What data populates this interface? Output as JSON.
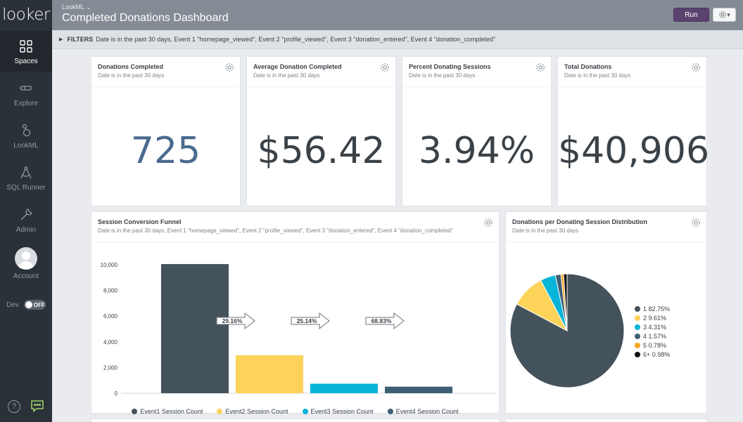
{
  "app": {
    "logo": "looker"
  },
  "sidebar": {
    "spaces": "Spaces",
    "explore": "Explore",
    "lookml": "LookML",
    "sql_runner": "SQL Runner",
    "admin": "Admin",
    "account": "Account",
    "dev_label": "Dev",
    "dev_toggle": "OFF",
    "help": "?"
  },
  "header": {
    "breadcrumb": "LookML",
    "title": "Completed Donations Dashboard",
    "run_label": "Run"
  },
  "filters": {
    "label": "FILTERS",
    "text": "Date is in the past 30 days, Event 1 \"homepage_viewed\", Event 2 \"profile_viewed\", Event 3 \"donation_entered\", Event 4 \"donation_completed\""
  },
  "tiles": {
    "donations_completed": {
      "title": "Donations Completed",
      "subtitle": "Date is in the past 30 days",
      "value": "725"
    },
    "avg_donation": {
      "title": "Average Donation Completed",
      "subtitle": "Date is in the past 30 days",
      "value": "$56.42"
    },
    "pct_donating": {
      "title": "Percent Donating Sessions",
      "subtitle": "Date is in the past 30 days",
      "value": "3.94%"
    },
    "total_donations": {
      "title": "Total Donations",
      "subtitle": "Date is in the past 30 days",
      "value": "$40,906"
    },
    "funnel": {
      "title": "Session Conversion Funnel",
      "subtitle": "Date is in the past 30 days, Event 1 \"homepage_viewed\", Event 2 \"profile_viewed\", Event 3 \"donation_entered\", Event 4 \"donation_completed\""
    },
    "distribution": {
      "title": "Donations per Donating Session Distribution",
      "subtitle": "Date is in the past 30 days"
    }
  },
  "colors": {
    "event1": "#44525c",
    "event2": "#fdd35a",
    "event3": "#09b4d9",
    "event4": "#3e5f73",
    "slice5": "#f5a623",
    "slice6": "#111111",
    "purple": "#5b4370"
  },
  "chart_data": [
    {
      "type": "bar",
      "title": "Session Conversion Funnel",
      "categories": [
        "Event1 Session Count",
        "Event2 Session Count",
        "Event3 Session Count",
        "Event4 Session Count"
      ],
      "values": [
        10050,
        2950,
        740,
        510
      ],
      "conversion_labels": [
        "29.16%",
        "25.14%",
        "68.83%"
      ],
      "yticks": [
        "10,000",
        "8,000",
        "6,000",
        "4,000",
        "2,000",
        "0"
      ],
      "ylim": [
        0,
        10500
      ],
      "legend": [
        "Event1 Session Count",
        "Event2 Session Count",
        "Event3 Session Count",
        "Event4 Session Count"
      ]
    },
    {
      "type": "pie",
      "title": "Donations per Donating Session Distribution",
      "labels": [
        "1",
        "2",
        "3",
        "4",
        "5",
        "6+"
      ],
      "values": [
        82.75,
        9.61,
        4.31,
        1.57,
        0.78,
        0.98
      ],
      "legend": [
        "1 82.75%",
        "2 9.61%",
        "3 4.31%",
        "4 1.57%",
        "5 0.78%",
        "6+ 0.98%"
      ]
    }
  ]
}
